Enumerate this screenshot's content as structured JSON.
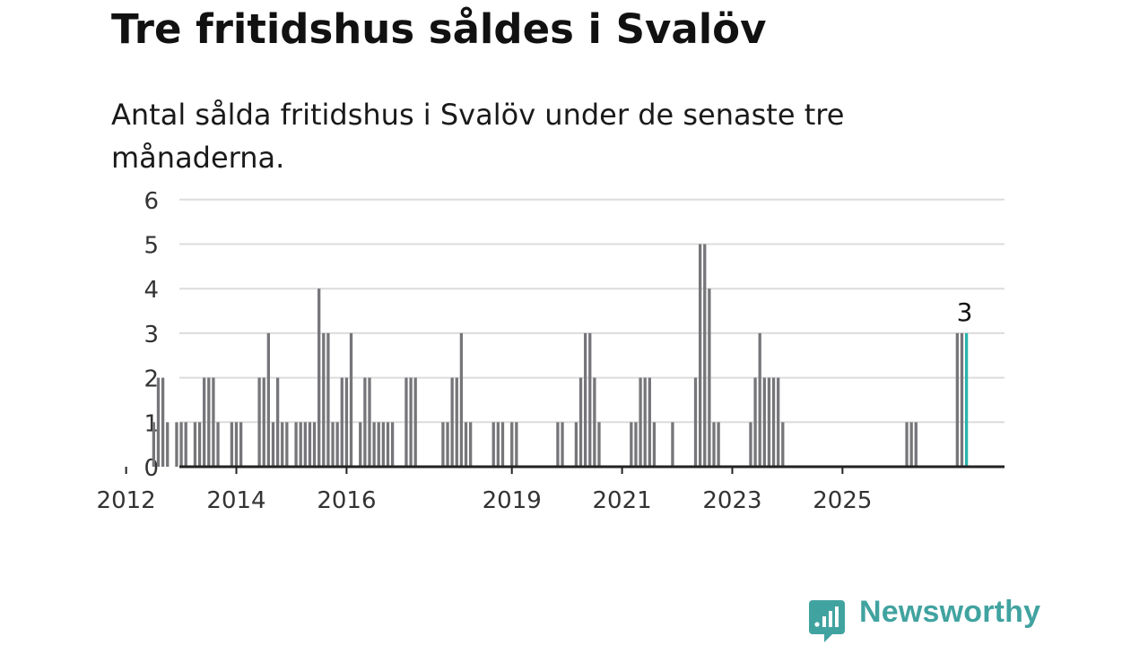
{
  "title": "Tre fritidshus såldes i Svalöv",
  "subtitle": "Antal sålda fritidshus i Svalöv under de senaste tre månaderna.",
  "brand": {
    "name": "Newsworthy",
    "color": "#41a3a0"
  },
  "colors": {
    "bar": "#76767a",
    "highlight": "#2ab3ad",
    "grid": "#dcdcdc",
    "axis": "#222222",
    "text": "#333333"
  },
  "chart_data": {
    "type": "bar",
    "ylim": [
      0,
      6
    ],
    "yticks": [
      0,
      1,
      2,
      3,
      4,
      5,
      6
    ],
    "xticks": [
      "2012",
      "2014",
      "2016",
      "2019",
      "2021",
      "2023",
      "2025"
    ],
    "grid": true,
    "start_month": "2011-01",
    "values": [
      0,
      0,
      0,
      0,
      0,
      0,
      0,
      0,
      0,
      0,
      0,
      0,
      0,
      0,
      0,
      0,
      0,
      0,
      1,
      2,
      2,
      1,
      0,
      1,
      1,
      1,
      0,
      1,
      1,
      2,
      2,
      2,
      1,
      0,
      0,
      1,
      1,
      1,
      0,
      0,
      0,
      2,
      2,
      3,
      1,
      2,
      1,
      1,
      0,
      1,
      1,
      1,
      1,
      1,
      4,
      3,
      3,
      1,
      1,
      2,
      2,
      3,
      0,
      1,
      2,
      2,
      1,
      1,
      1,
      1,
      1,
      0,
      0,
      2,
      2,
      2,
      0,
      0,
      0,
      0,
      0,
      1,
      1,
      2,
      2,
      3,
      1,
      1,
      0,
      0,
      0,
      0,
      1,
      1,
      1,
      0,
      1,
      1,
      0,
      0,
      0,
      0,
      0,
      0,
      0,
      0,
      1,
      1,
      0,
      0,
      1,
      2,
      3,
      3,
      2,
      1,
      0,
      0,
      0,
      0,
      0,
      0,
      1,
      1,
      2,
      2,
      2,
      1,
      0,
      0,
      0,
      1,
      0,
      0,
      0,
      0,
      2,
      5,
      5,
      4,
      1,
      1,
      0,
      0,
      0,
      0,
      0,
      0,
      1,
      2,
      3,
      2,
      2,
      2,
      2,
      1,
      0,
      0,
      0,
      0,
      0,
      0,
      0,
      0,
      0,
      0,
      0,
      0,
      0,
      0,
      0,
      0,
      0,
      0,
      0,
      0,
      0,
      0,
      0,
      0,
      0,
      0,
      1,
      1,
      1,
      0,
      0,
      0,
      0,
      0,
      0,
      0,
      0,
      3,
      3,
      3
    ],
    "highlight_label": "3"
  }
}
